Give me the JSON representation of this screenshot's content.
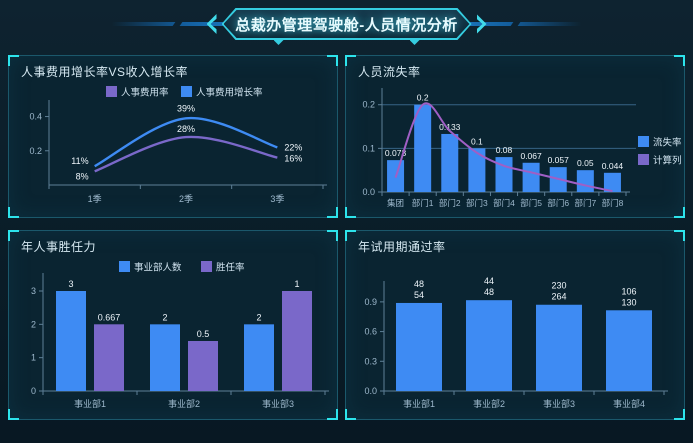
{
  "header": {
    "title": "总裁办管理驾驶舱-人员情况分析"
  },
  "colors": {
    "background": "#0c1f2a",
    "panel_background": "#0a2431",
    "panel_border": "#2c8ca5",
    "corner_accent": "#2de4ec",
    "badge_border": "#35cde0",
    "header_line": "#1a79c2",
    "title_text": "#e8fcff",
    "axis": "#5e7f96",
    "tick_label": "#9db8cc",
    "value_label": "#eef5fa",
    "grid_line": "#3e6f94",
    "legend_text": "#cfe2ee",
    "blue": "#3e8bf3",
    "purple": "#7a68c9",
    "magenta_line": "#a05fc5"
  },
  "chart_data": [
    {
      "type": "line",
      "title": "人事费用增长率VS收入增长率",
      "categories": [
        "1季",
        "2季",
        "3季"
      ],
      "series": [
        {
          "name": "人事费用率",
          "color": "#7a68c9",
          "values": [
            0.08,
            0.28,
            0.16
          ],
          "labels": [
            "8%",
            "28%",
            "16%"
          ]
        },
        {
          "name": "人事费用增长率",
          "color": "#3e8bf3",
          "values": [
            0.11,
            0.39,
            0.22
          ],
          "labels": [
            "11%",
            "39%",
            "22%"
          ]
        }
      ],
      "yticks": [
        "0.2",
        "0.4"
      ],
      "ytick_values": [
        0.2,
        0.4
      ],
      "ylim": [
        0,
        0.45
      ],
      "legend_position": "top",
      "grid": false
    },
    {
      "type": "bar-line",
      "title": "人员流失率",
      "categories": [
        "集团",
        "部门1",
        "部门2",
        "部门3",
        "部门4",
        "部门5",
        "部门6",
        "部门7",
        "部门8"
      ],
      "bars": {
        "name": "流失率",
        "color": "#3e8bf3",
        "values": [
          0.073,
          0.2,
          0.133,
          0.1,
          0.08,
          0.067,
          0.057,
          0.05,
          0.044
        ],
        "labels": [
          "0.073",
          "0.2",
          "0.133",
          "0.1",
          "0.08",
          "0.067",
          "0.057",
          "0.05",
          "0.044"
        ]
      },
      "line": {
        "name": "计算列",
        "color": "#a05fc5",
        "legend_color": "#7a68c9",
        "values": [
          0.033,
          0.2,
          0.14,
          0.09,
          0.06,
          0.045,
          0.03,
          0.015,
          0.002
        ]
      },
      "yticks": [
        "0.0",
        "0.1",
        "0.2"
      ],
      "ytick_values": [
        0,
        0.1,
        0.2
      ],
      "ylim": [
        0,
        0.22
      ],
      "gridlines": [
        0.1,
        0.2
      ],
      "legend_position": "right",
      "grid": true
    },
    {
      "type": "grouped-bar",
      "title": "年人事胜任力",
      "categories": [
        "事业部1",
        "事业部2",
        "事业部3"
      ],
      "series": [
        {
          "name": "事业部人数",
          "color": "#3e8bf3",
          "values": [
            3,
            2,
            2
          ],
          "labels": [
            "3",
            "2",
            "2"
          ],
          "axis_scale": 1
        },
        {
          "name": "胜任率",
          "color": "#7a68c9",
          "values": [
            0.667,
            0.5,
            1
          ],
          "labels": [
            "0.667",
            "0.5",
            "1"
          ],
          "axis_scale": 3
        }
      ],
      "yticks": [
        "0",
        "1",
        "2",
        "3"
      ],
      "ytick_values": [
        0,
        1,
        2,
        3
      ],
      "ylim": [
        0,
        3.3
      ],
      "legend_position": "top",
      "grid": false
    },
    {
      "type": "bar",
      "title": "年试用期通过率",
      "categories": [
        "事业部1",
        "事业部2",
        "事业部3",
        "事业部4"
      ],
      "bars": {
        "name": "通过率",
        "color": "#3e8bf3",
        "values": [
          0.889,
          0.917,
          0.871,
          0.815
        ],
        "labels": [
          [
            "48",
            "54"
          ],
          [
            "44",
            "48"
          ],
          [
            "230",
            "264"
          ],
          [
            "106",
            "130"
          ]
        ]
      },
      "yticks": [
        "0.0",
        "0.3",
        "0.6",
        "0.9"
      ],
      "ytick_values": [
        0,
        0.3,
        0.6,
        0.9
      ],
      "ylim": [
        0,
        1.03
      ],
      "legend_position": "none",
      "grid": false
    }
  ]
}
